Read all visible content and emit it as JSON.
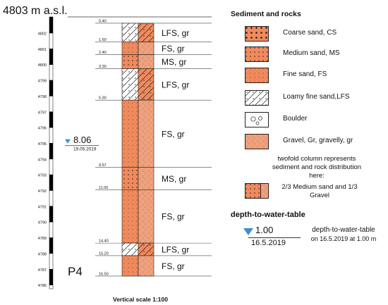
{
  "header": {
    "elevation_label": "4803 m a.s.l.",
    "profile_id": "P4"
  },
  "scale_label": "Vertical scale 1:100",
  "elevation_ticks": [
    "4802",
    "4801",
    "4800",
    "4799",
    "4798",
    "4797",
    "4796",
    "4795",
    "4794",
    "4793",
    "4792",
    "4791",
    "4790",
    "4789",
    "4788",
    "4787",
    "4786"
  ],
  "water_table": {
    "depth": "8.06",
    "date": "19.05.2019",
    "depth_m": 8.06
  },
  "total_depth_m": 16.5,
  "layers": [
    {
      "from": 0.4,
      "to": 1.6,
      "top_label": "0.40",
      "bottom_label": "1.60",
      "label": "LFS, gr",
      "type": "loamy-fine-sand"
    },
    {
      "from": 1.6,
      "to": 2.4,
      "top_label": "",
      "bottom_label": "2.40",
      "label": "FS, gr",
      "type": "fine-sand"
    },
    {
      "from": 2.4,
      "to": 3.3,
      "top_label": "",
      "bottom_label": "3.30",
      "label": "MS, gr",
      "type": "medium-sand"
    },
    {
      "from": 3.3,
      "to": 5.3,
      "top_label": "",
      "bottom_label": "5.30",
      "label": "LFS, gr",
      "type": "loamy-fine-sand"
    },
    {
      "from": 5.3,
      "to": 9.57,
      "top_label": "",
      "bottom_label": "9.57",
      "label": "FS, gr",
      "type": "fine-sand"
    },
    {
      "from": 9.57,
      "to": 11.0,
      "top_label": "",
      "bottom_label": "11.00",
      "label": "MS, gr",
      "type": "medium-sand"
    },
    {
      "from": 11.0,
      "to": 14.4,
      "top_label": "",
      "bottom_label": "14.40",
      "label": "FS, gr",
      "type": "fine-sand"
    },
    {
      "from": 14.4,
      "to": 15.2,
      "top_label": "",
      "bottom_label": "15.20",
      "label": "LFS, gr",
      "type": "loamy-fine-sand"
    },
    {
      "from": 15.2,
      "to": 16.5,
      "top_label": "",
      "bottom_label": "16.50",
      "label": "FS, gr",
      "type": "fine-sand"
    }
  ],
  "legend": {
    "title": "Sediment and rocks",
    "items": [
      {
        "label": "Coarse sand, CS",
        "pattern": "coarse-sand"
      },
      {
        "label": "Medium sand, MS",
        "pattern": "medium-sand"
      },
      {
        "label": "Fine sand, FS",
        "pattern": "fine-sand"
      },
      {
        "label": "Loamy fine sand,LFS",
        "pattern": "loamy-fine-sand"
      },
      {
        "label": "Boulder",
        "pattern": "boulder"
      },
      {
        "label": "Gravel, Gr, gravelly, gr",
        "pattern": "gravel"
      }
    ],
    "note": "twofold column represents sediment and rock distribution here:",
    "note_example": "2/3 Medium sand and 1/3 Gravel"
  },
  "water_legend": {
    "title": "depth-to-water-table",
    "value": "1.00",
    "date": "16.5.2019",
    "description_line1": "depth-to-water-table",
    "description_line2": "on 16.5.2019 at 1.00 m"
  },
  "colors": {
    "sand": "#f08a5d",
    "sand_light": "#f4a27c",
    "gravel": "#e9b8a0",
    "water_marker": "#3a8fd0"
  }
}
